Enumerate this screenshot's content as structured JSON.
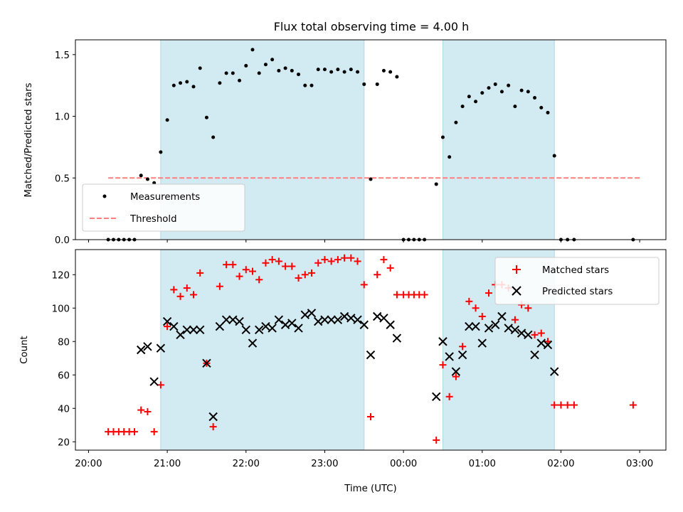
{
  "chart_data": [
    {
      "type": "scatter",
      "title": "Flux total observing time = 4.00 h",
      "xlabel": "",
      "ylabel": "Matched/Predicted stars",
      "ylim": [
        0,
        1.62
      ],
      "yticks": [
        "0.0",
        "0.5",
        "1.0",
        "1.5"
      ],
      "xlim": [
        "19:50",
        "03:20"
      ],
      "xticks": [
        "20:00",
        "21:00",
        "22:00",
        "23:00",
        "00:00",
        "01:00",
        "02:00",
        "03:00"
      ],
      "observing_windows": [
        [
          "20:55",
          "23:30"
        ],
        [
          "00:30",
          "01:55"
        ]
      ],
      "legend": {
        "placement": "lower-left",
        "entries": [
          "Measurements",
          "Threshold"
        ]
      },
      "threshold": {
        "name": "Threshold",
        "y": 0.5,
        "x_start": "20:15",
        "x_end": "03:00",
        "color": "#ff7f7f",
        "style": "dashed"
      },
      "series": [
        {
          "name": "Measurements",
          "color": "#000000",
          "marker": "dot",
          "points": [
            [
              "20:15",
              0.0
            ],
            [
              "20:19",
              0.0
            ],
            [
              "20:23",
              0.0
            ],
            [
              "20:27",
              0.0
            ],
            [
              "20:31",
              0.0
            ],
            [
              "20:35",
              0.0
            ],
            [
              "20:40",
              0.52
            ],
            [
              "20:45",
              0.49
            ],
            [
              "20:50",
              0.46
            ],
            [
              "20:55",
              0.71
            ],
            [
              "21:00",
              0.97
            ],
            [
              "21:05",
              1.25
            ],
            [
              "21:10",
              1.27
            ],
            [
              "21:15",
              1.28
            ],
            [
              "21:20",
              1.24
            ],
            [
              "21:25",
              1.39
            ],
            [
              "21:30",
              0.99
            ],
            [
              "21:35",
              0.83
            ],
            [
              "21:40",
              1.27
            ],
            [
              "21:45",
              1.35
            ],
            [
              "21:50",
              1.35
            ],
            [
              "21:55",
              1.29
            ],
            [
              "22:00",
              1.41
            ],
            [
              "22:05",
              1.54
            ],
            [
              "22:10",
              1.35
            ],
            [
              "22:15",
              1.42
            ],
            [
              "22:20",
              1.46
            ],
            [
              "22:25",
              1.37
            ],
            [
              "22:30",
              1.39
            ],
            [
              "22:35",
              1.37
            ],
            [
              "22:40",
              1.34
            ],
            [
              "22:45",
              1.25
            ],
            [
              "22:50",
              1.25
            ],
            [
              "22:55",
              1.38
            ],
            [
              "23:00",
              1.38
            ],
            [
              "23:05",
              1.36
            ],
            [
              "23:10",
              1.38
            ],
            [
              "23:15",
              1.36
            ],
            [
              "23:20",
              1.38
            ],
            [
              "23:25",
              1.36
            ],
            [
              "23:30",
              1.26
            ],
            [
              "23:35",
              0.49
            ],
            [
              "23:40",
              1.26
            ],
            [
              "23:45",
              1.37
            ],
            [
              "23:50",
              1.36
            ],
            [
              "23:55",
              1.32
            ],
            [
              "00:00",
              0.0
            ],
            [
              "00:04",
              0.0
            ],
            [
              "00:08",
              0.0
            ],
            [
              "00:12",
              0.0
            ],
            [
              "00:16",
              0.0
            ],
            [
              "00:25",
              0.45
            ],
            [
              "00:30",
              0.83
            ],
            [
              "00:35",
              0.67
            ],
            [
              "00:40",
              0.95
            ],
            [
              "00:45",
              1.08
            ],
            [
              "00:50",
              1.16
            ],
            [
              "00:55",
              1.12
            ],
            [
              "01:00",
              1.19
            ],
            [
              "01:05",
              1.23
            ],
            [
              "01:10",
              1.26
            ],
            [
              "01:15",
              1.2
            ],
            [
              "01:20",
              1.25
            ],
            [
              "01:25",
              1.08
            ],
            [
              "01:30",
              1.21
            ],
            [
              "01:35",
              1.2
            ],
            [
              "01:40",
              1.15
            ],
            [
              "01:45",
              1.07
            ],
            [
              "01:50",
              1.03
            ],
            [
              "01:55",
              0.68
            ],
            [
              "02:00",
              0.0
            ],
            [
              "02:05",
              0.0
            ],
            [
              "02:10",
              0.0
            ],
            [
              "02:55",
              0.0
            ]
          ]
        }
      ]
    },
    {
      "type": "scatter",
      "title": "",
      "xlabel": "Time (UTC)",
      "ylabel": "Count",
      "ylim": [
        15,
        135
      ],
      "yticks": [
        "20",
        "40",
        "60",
        "80",
        "100",
        "120"
      ],
      "xlim": [
        "19:50",
        "03:20"
      ],
      "xticks": [
        "20:00",
        "21:00",
        "22:00",
        "23:00",
        "00:00",
        "01:00",
        "02:00",
        "03:00"
      ],
      "observing_windows": [
        [
          "20:55",
          "23:30"
        ],
        [
          "00:30",
          "01:55"
        ]
      ],
      "legend": {
        "placement": "upper-right",
        "entries": [
          "Matched stars",
          "Predicted stars"
        ]
      },
      "series": [
        {
          "name": "Matched stars",
          "color": "#ff0000",
          "marker": "plus",
          "points": [
            [
              "20:15",
              26
            ],
            [
              "20:19",
              26
            ],
            [
              "20:23",
              26
            ],
            [
              "20:27",
              26
            ],
            [
              "20:31",
              26
            ],
            [
              "20:35",
              26
            ],
            [
              "20:40",
              39
            ],
            [
              "20:45",
              38
            ],
            [
              "20:50",
              26
            ],
            [
              "20:55",
              54
            ],
            [
              "21:00",
              89
            ],
            [
              "21:05",
              111
            ],
            [
              "21:10",
              107
            ],
            [
              "21:15",
              112
            ],
            [
              "21:20",
              108
            ],
            [
              "21:25",
              121
            ],
            [
              "21:30",
              67
            ],
            [
              "21:35",
              29
            ],
            [
              "21:40",
              113
            ],
            [
              "21:45",
              126
            ],
            [
              "21:50",
              126
            ],
            [
              "21:55",
              119
            ],
            [
              "22:00",
              123
            ],
            [
              "22:05",
              122
            ],
            [
              "22:10",
              117
            ],
            [
              "22:15",
              127
            ],
            [
              "22:20",
              129
            ],
            [
              "22:25",
              128
            ],
            [
              "22:30",
              125
            ],
            [
              "22:35",
              125
            ],
            [
              "22:40",
              118
            ],
            [
              "22:45",
              120
            ],
            [
              "22:50",
              121
            ],
            [
              "22:55",
              127
            ],
            [
              "23:00",
              129
            ],
            [
              "23:05",
              128
            ],
            [
              "23:10",
              129
            ],
            [
              "23:15",
              130
            ],
            [
              "23:20",
              130
            ],
            [
              "23:25",
              128
            ],
            [
              "23:30",
              114
            ],
            [
              "23:35",
              35
            ],
            [
              "23:40",
              120
            ],
            [
              "23:45",
              129
            ],
            [
              "23:50",
              124
            ],
            [
              "23:55",
              108
            ],
            [
              "00:00",
              108
            ],
            [
              "00:04",
              108
            ],
            [
              "00:08",
              108
            ],
            [
              "00:12",
              108
            ],
            [
              "00:16",
              108
            ],
            [
              "00:25",
              21
            ],
            [
              "00:30",
              66
            ],
            [
              "00:35",
              47
            ],
            [
              "00:40",
              59
            ],
            [
              "00:45",
              77
            ],
            [
              "00:50",
              104
            ],
            [
              "00:55",
              100
            ],
            [
              "01:00",
              95
            ],
            [
              "01:05",
              109
            ],
            [
              "01:10",
              114
            ],
            [
              "01:15",
              114
            ],
            [
              "01:20",
              112
            ],
            [
              "01:25",
              93
            ],
            [
              "01:30",
              102
            ],
            [
              "01:35",
              100
            ],
            [
              "01:40",
              84
            ],
            [
              "01:45",
              85
            ],
            [
              "01:50",
              80
            ],
            [
              "01:55",
              42
            ],
            [
              "02:00",
              42
            ],
            [
              "02:05",
              42
            ],
            [
              "02:10",
              42
            ],
            [
              "02:55",
              42
            ]
          ]
        },
        {
          "name": "Predicted stars",
          "color": "#000000",
          "marker": "x",
          "points": [
            [
              "20:40",
              75
            ],
            [
              "20:45",
              77
            ],
            [
              "20:50",
              56
            ],
            [
              "20:55",
              76
            ],
            [
              "21:00",
              92
            ],
            [
              "21:05",
              89
            ],
            [
              "21:10",
              84
            ],
            [
              "21:15",
              87
            ],
            [
              "21:20",
              87
            ],
            [
              "21:25",
              87
            ],
            [
              "21:30",
              67
            ],
            [
              "21:35",
              35
            ],
            [
              "21:40",
              89
            ],
            [
              "21:45",
              93
            ],
            [
              "21:50",
              93
            ],
            [
              "21:55",
              92
            ],
            [
              "22:00",
              87
            ],
            [
              "22:05",
              79
            ],
            [
              "22:10",
              87
            ],
            [
              "22:15",
              89
            ],
            [
              "22:20",
              88
            ],
            [
              "22:25",
              93
            ],
            [
              "22:30",
              90
            ],
            [
              "22:35",
              91
            ],
            [
              "22:40",
              88
            ],
            [
              "22:45",
              96
            ],
            [
              "22:50",
              97
            ],
            [
              "22:55",
              92
            ],
            [
              "23:00",
              93
            ],
            [
              "23:05",
              93
            ],
            [
              "23:10",
              93
            ],
            [
              "23:15",
              95
            ],
            [
              "23:20",
              94
            ],
            [
              "23:25",
              93
            ],
            [
              "23:30",
              90
            ],
            [
              "23:35",
              72
            ],
            [
              "23:40",
              95
            ],
            [
              "23:45",
              94
            ],
            [
              "23:50",
              90
            ],
            [
              "23:55",
              82
            ],
            [
              "00:25",
              47
            ],
            [
              "00:30",
              80
            ],
            [
              "00:35",
              71
            ],
            [
              "00:40",
              62
            ],
            [
              "00:45",
              72
            ],
            [
              "00:50",
              89
            ],
            [
              "00:55",
              89
            ],
            [
              "01:00",
              79
            ],
            [
              "01:05",
              88
            ],
            [
              "01:10",
              90
            ],
            [
              "01:15",
              95
            ],
            [
              "01:20",
              88
            ],
            [
              "01:25",
              87
            ],
            [
              "01:30",
              85
            ],
            [
              "01:35",
              84
            ],
            [
              "01:40",
              72
            ],
            [
              "01:45",
              79
            ],
            [
              "01:50",
              78
            ],
            [
              "01:55",
              62
            ]
          ]
        }
      ]
    }
  ]
}
